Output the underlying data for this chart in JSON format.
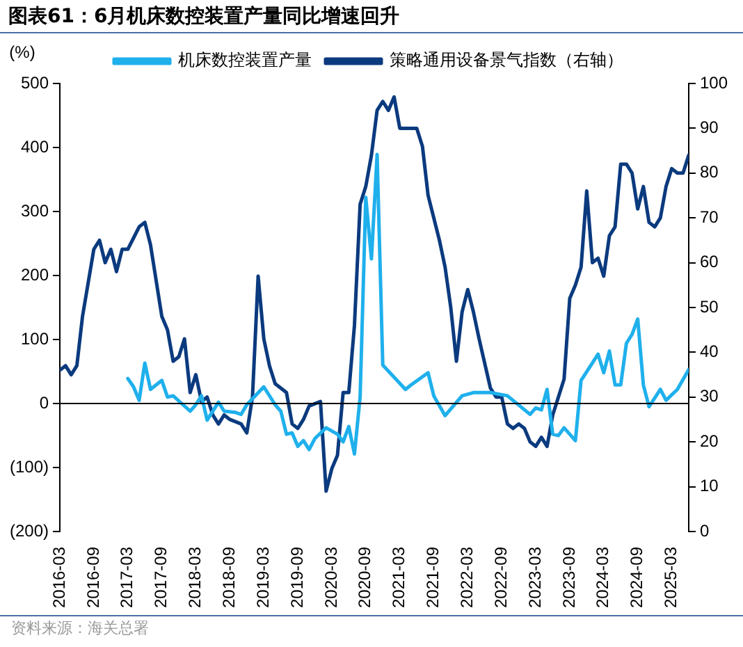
{
  "chart_data": {
    "type": "line",
    "title": "图表61：6月机床数控装置产量同比增速回升",
    "ylabel": "(%)",
    "annotations": [
      "资料来源：海关总署"
    ],
    "xlim": [
      "2016-03",
      "2025-06"
    ],
    "xticks": [
      "2016-03",
      "2016-09",
      "2017-03",
      "2017-09",
      "2018-03",
      "2018-09",
      "2019-03",
      "2019-09",
      "2020-03",
      "2020-09",
      "2021-03",
      "2021-09",
      "2022-03",
      "2022-09",
      "2023-03",
      "2023-09",
      "2024-03",
      "2024-09",
      "2025-03"
    ],
    "ylim": [
      -200,
      500
    ],
    "yticks": [
      {
        "value": -200,
        "label": "(200)"
      },
      {
        "value": -100,
        "label": "(100)"
      },
      0,
      100,
      200,
      300,
      400,
      500
    ],
    "y2lim": [
      0,
      100
    ],
    "y2ticks": [
      0,
      10,
      20,
      30,
      40,
      50,
      60,
      70,
      80,
      90,
      100
    ],
    "legend": "top",
    "grid": false,
    "ref_lines": [
      {
        "axis": "y",
        "value": 0,
        "color": "#000000"
      }
    ],
    "series": [
      {
        "name": "机床数控装置产量",
        "color": "#1fb0ec",
        "x": [
          "2017-03",
          "2017-04",
          "2017-05",
          "2017-06",
          "2017-07",
          "2017-09",
          "2017-10",
          "2017-11",
          "2018-02",
          "2018-03",
          "2018-04",
          "2018-05",
          "2018-07",
          "2018-08",
          "2018-10",
          "2018-11",
          "2018-12",
          "2019-03",
          "2019-05",
          "2019-06",
          "2019-07",
          "2019-08",
          "2019-09",
          "2019-10",
          "2019-11",
          "2019-12",
          "2020-02",
          "2020-04",
          "2020-05",
          "2020-06",
          "2020-07",
          "2020-08",
          "2020-09",
          "2020-10",
          "2020-11",
          "2020-12",
          "2021-04",
          "2021-05",
          "2021-08",
          "2021-09",
          "2021-11",
          "2022-02",
          "2022-04",
          "2022-07",
          "2022-10",
          "2023-02",
          "2023-03",
          "2023-04",
          "2023-05",
          "2023-06",
          "2023-07",
          "2023-08",
          "2023-10",
          "2023-11",
          "2024-02",
          "2024-03",
          "2024-04",
          "2024-05",
          "2024-06",
          "2024-07",
          "2024-08",
          "2024-09",
          "2024-10",
          "2024-11",
          "2025-01",
          "2025-02",
          "2025-04",
          "2025-06"
        ],
        "values": [
          39,
          26,
          5,
          63,
          22,
          36,
          10,
          12,
          -12,
          -2,
          12,
          -26,
          2,
          -12,
          -14,
          -17,
          -2,
          26,
          -2,
          -12,
          -48,
          -46,
          -67,
          -58,
          -72,
          -55,
          -38,
          -48,
          -60,
          -36,
          -79,
          10,
          322,
          226,
          389,
          60,
          22,
          29,
          48,
          12,
          -19,
          12,
          17,
          17,
          12,
          -17,
          -7,
          -10,
          22,
          -48,
          -50,
          -38,
          -58,
          36,
          77,
          48,
          82,
          29,
          29,
          94,
          108,
          132,
          29,
          -5,
          22,
          5,
          22,
          53
        ]
      },
      {
        "name": "策略通用设备景气指数（右轴）",
        "color": "#0b3a7e",
        "axis": "y2",
        "x": [
          "2016-03",
          "2016-04",
          "2016-05",
          "2016-06",
          "2016-07",
          "2016-09",
          "2016-10",
          "2016-11",
          "2016-12",
          "2017-01",
          "2017-02",
          "2017-03",
          "2017-05",
          "2017-06",
          "2017-07",
          "2017-09",
          "2017-10",
          "2017-11",
          "2017-12",
          "2018-01",
          "2018-02",
          "2018-03",
          "2018-04",
          "2018-05",
          "2018-06",
          "2018-07",
          "2018-08",
          "2018-09",
          "2018-11",
          "2018-12",
          "2019-01",
          "2019-02",
          "2019-03",
          "2019-04",
          "2019-05",
          "2019-07",
          "2019-08",
          "2019-09",
          "2019-10",
          "2019-11",
          "2020-01",
          "2020-02",
          "2020-03",
          "2020-04",
          "2020-05",
          "2020-06",
          "2020-07",
          "2020-08",
          "2020-09",
          "2020-10",
          "2020-11",
          "2020-12",
          "2021-01",
          "2021-02",
          "2021-03",
          "2021-05",
          "2021-06",
          "2021-07",
          "2021-08",
          "2021-10",
          "2021-11",
          "2021-12",
          "2022-01",
          "2022-02",
          "2022-03",
          "2022-04",
          "2022-05",
          "2022-07",
          "2022-08",
          "2022-09",
          "2022-10",
          "2022-11",
          "2022-12",
          "2023-01",
          "2023-02",
          "2023-03",
          "2023-04",
          "2023-05",
          "2023-06",
          "2023-07",
          "2023-08",
          "2023-09",
          "2023-10",
          "2023-11",
          "2023-12",
          "2024-01",
          "2024-02",
          "2024-03",
          "2024-04",
          "2024-05",
          "2024-06",
          "2024-07",
          "2024-08",
          "2024-09",
          "2024-10",
          "2024-11",
          "2024-12",
          "2025-01",
          "2025-02",
          "2025-03",
          "2025-04",
          "2025-05",
          "2025-06"
        ],
        "values": [
          36,
          37,
          35,
          37,
          48,
          63,
          65,
          60,
          63,
          58,
          63,
          63,
          68,
          69,
          64,
          48,
          45,
          38,
          39,
          43,
          31,
          35,
          29,
          30,
          26,
          24,
          26,
          25,
          24,
          22,
          30,
          57,
          43,
          37,
          33,
          31,
          24,
          23,
          25,
          28,
          29,
          9,
          14,
          17,
          31,
          31,
          46,
          73,
          77,
          84,
          94,
          96,
          94,
          97,
          90,
          90,
          90,
          86,
          75,
          65,
          59,
          50,
          38,
          49,
          54,
          49,
          43,
          32,
          30,
          30,
          24,
          23,
          24,
          23,
          20,
          19,
          21,
          19,
          26,
          30,
          34,
          52,
          55,
          59,
          76,
          60,
          61,
          57,
          66,
          68,
          82,
          82,
          80,
          72,
          77,
          69,
          68,
          70,
          77,
          81,
          80,
          80,
          84
        ]
      }
    ]
  }
}
